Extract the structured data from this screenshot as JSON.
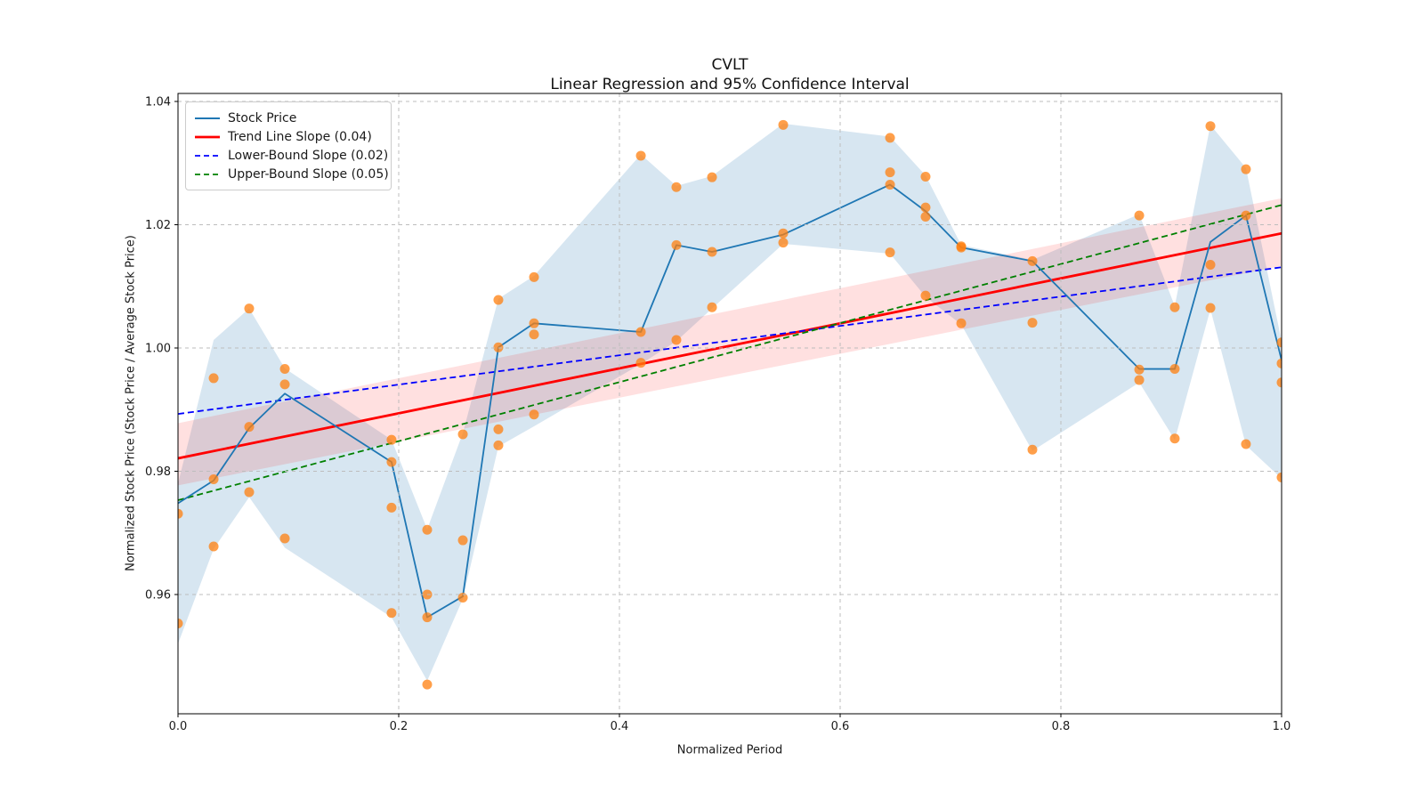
{
  "title": {
    "line1": "CVLT",
    "line2": "Linear Regression and 95% Confidence Interval"
  },
  "axes": {
    "x_label": "Normalized Period",
    "y_label": "Normalized Stock Price (Stock Price / Average Stock Price)",
    "x_tick_labels": [
      "0.0",
      "0.2",
      "0.4",
      "0.6",
      "0.8",
      "1.0"
    ],
    "x_tick_values": [
      0.0,
      0.2,
      0.4,
      0.6,
      0.8,
      1.0
    ],
    "y_tick_labels": [
      "0.96",
      "0.98",
      "1.00",
      "1.02",
      "1.04"
    ],
    "y_tick_values": [
      0.96,
      0.98,
      1.0,
      1.02,
      1.04
    ],
    "grid": "dashed"
  },
  "legend": {
    "items": [
      {
        "label": "Stock Price",
        "color": "#1f77b4",
        "dash": "solid",
        "width": 2
      },
      {
        "label": "Trend Line Slope (0.04)",
        "color": "#ff0000",
        "dash": "solid",
        "width": 2.8
      },
      {
        "label": "Lower-Bound Slope (0.02)",
        "color": "#0000ff",
        "dash": "dashed",
        "width": 1.8
      },
      {
        "label": "Upper-Bound Slope (0.05)",
        "color": "#008000",
        "dash": "dashed",
        "width": 1.8
      }
    ]
  },
  "colors": {
    "stock_line": "#1f77b4",
    "stock_band_fill": "#1f77b4",
    "scatter": "#ff7f0e",
    "trend": "#ff0000",
    "trend_ci_fill": "#ff0000",
    "lower_bound": "#0000ff",
    "upper_bound": "#008000",
    "grid": "#bdbdbd",
    "spine": "#000000",
    "text": "#1a1a1a"
  },
  "chart_data": {
    "type": "line",
    "title": "CVLT",
    "subtitle": "Linear Regression and 95% Confidence Interval",
    "xlabel": "Normalized Period",
    "ylabel": "Normalized Stock Price (Stock Price / Average Stock Price)",
    "xlim": [
      0.0,
      1.0
    ],
    "ylim": [
      0.9407,
      1.0413
    ],
    "legend_position": "upper left",
    "x": [
      0.0,
      0.0323,
      0.0645,
      0.0968,
      0.1935,
      0.2258,
      0.2581,
      0.2903,
      0.3226,
      0.4194,
      0.4516,
      0.4839,
      0.5484,
      0.6452,
      0.6774,
      0.7097,
      0.7742,
      0.871,
      0.9032,
      0.9355,
      0.9677,
      1.0
    ],
    "series": [
      {
        "name": "Stock Price",
        "values": [
          0.9748,
          0.9785,
          0.987,
          0.9926,
          0.9815,
          0.9563,
          0.9597,
          1.0001,
          1.004,
          1.0026,
          1.0167,
          1.0156,
          1.0184,
          1.0265,
          1.0222,
          1.0163,
          1.0141,
          0.9966,
          0.9966,
          1.0172,
          1.0215,
          0.998
        ]
      }
    ],
    "stock_band": {
      "name": "stock price min-max band",
      "upper": [
        0.978,
        1.0013,
        1.0064,
        0.9967,
        0.9851,
        0.9706,
        0.9862,
        1.008,
        1.0117,
        1.0314,
        1.0263,
        1.0279,
        1.0364,
        1.0343,
        1.028,
        1.0167,
        1.0143,
        1.0217,
        1.0068,
        1.0362,
        1.0292,
        1.0011
      ],
      "lower": [
        0.952,
        0.9674,
        0.9758,
        0.9676,
        0.9563,
        0.946,
        0.9593,
        0.984,
        0.9873,
        0.9974,
        1.0011,
        1.0064,
        1.0169,
        1.0153,
        1.0083,
        1.0038,
        0.9833,
        0.9944,
        0.9851,
        1.0063,
        0.9842,
        0.9788
      ]
    },
    "scatter": {
      "name": "stock price samples",
      "points": [
        [
          0.0,
          0.9731
        ],
        [
          0.0,
          0.9553
        ],
        [
          0.0323,
          0.9951
        ],
        [
          0.0323,
          0.9787
        ],
        [
          0.0323,
          0.9678
        ],
        [
          0.0645,
          1.0064
        ],
        [
          0.0645,
          0.9872
        ],
        [
          0.0645,
          0.9766
        ],
        [
          0.0968,
          0.9966
        ],
        [
          0.0968,
          0.9941
        ],
        [
          0.0968,
          0.9691
        ],
        [
          0.1935,
          0.9851
        ],
        [
          0.1935,
          0.9815
        ],
        [
          0.1935,
          0.9741
        ],
        [
          0.1935,
          0.957
        ],
        [
          0.2258,
          0.9705
        ],
        [
          0.2258,
          0.96
        ],
        [
          0.2258,
          0.9563
        ],
        [
          0.2258,
          0.9454
        ],
        [
          0.2581,
          0.986
        ],
        [
          0.2581,
          0.9688
        ],
        [
          0.2581,
          0.9595
        ],
        [
          0.2903,
          1.0078
        ],
        [
          0.2903,
          1.0001
        ],
        [
          0.2903,
          0.9868
        ],
        [
          0.2903,
          0.9842
        ],
        [
          0.3226,
          1.0115
        ],
        [
          0.3226,
          1.004
        ],
        [
          0.3226,
          1.0022
        ],
        [
          0.3226,
          0.9892
        ],
        [
          0.4194,
          1.0312
        ],
        [
          0.4194,
          1.0026
        ],
        [
          0.4194,
          0.9976
        ],
        [
          0.4516,
          1.0261
        ],
        [
          0.4516,
          1.0167
        ],
        [
          0.4516,
          1.0013
        ],
        [
          0.4839,
          1.0277
        ],
        [
          0.4839,
          1.0156
        ],
        [
          0.4839,
          1.0066
        ],
        [
          0.5484,
          1.0362
        ],
        [
          0.5484,
          1.0186
        ],
        [
          0.5484,
          1.0171
        ],
        [
          0.6452,
          1.0341
        ],
        [
          0.6452,
          1.0285
        ],
        [
          0.6452,
          1.0265
        ],
        [
          0.6452,
          1.0155
        ],
        [
          0.6774,
          1.0278
        ],
        [
          0.6774,
          1.0228
        ],
        [
          0.6774,
          1.0213
        ],
        [
          0.6774,
          1.0085
        ],
        [
          0.7097,
          1.0165
        ],
        [
          0.7097,
          1.0163
        ],
        [
          0.7097,
          1.004
        ],
        [
          0.7742,
          1.0141
        ],
        [
          0.7742,
          1.0041
        ],
        [
          0.7742,
          0.9835
        ],
        [
          0.871,
          1.0215
        ],
        [
          0.871,
          0.9965
        ],
        [
          0.871,
          0.9948
        ],
        [
          0.9032,
          1.0066
        ],
        [
          0.9032,
          0.9966
        ],
        [
          0.9032,
          0.9853
        ],
        [
          0.9355,
          1.036
        ],
        [
          0.9355,
          1.0135
        ],
        [
          0.9355,
          1.0065
        ],
        [
          0.9677,
          1.029
        ],
        [
          0.9677,
          1.0215
        ],
        [
          0.9677,
          0.9844
        ],
        [
          1.0,
          1.0009
        ],
        [
          1.0,
          0.9975
        ],
        [
          1.0,
          0.9944
        ],
        [
          1.0,
          0.979
        ]
      ]
    },
    "trend_lines": [
      {
        "name": "Trend Line Slope (0.04)",
        "slope_label": 0.04,
        "color": "#ff0000",
        "dash": "solid",
        "width": 2.8,
        "y_start": 0.9821,
        "y_end": 1.0186
      },
      {
        "name": "Lower-Bound Slope (0.02)",
        "slope_label": 0.02,
        "color": "#0000ff",
        "dash": "dashed",
        "width": 1.8,
        "y_start": 0.9893,
        "y_end": 1.0131
      },
      {
        "name": "Upper-Bound Slope (0.05)",
        "slope_label": 0.05,
        "color": "#008000",
        "dash": "dashed",
        "width": 1.8,
        "y_start": 0.9753,
        "y_end": 1.0232
      }
    ],
    "confidence_band": {
      "name": "95% confidence interval of trend line",
      "start_range": [
        0.9777,
        0.9878
      ],
      "end_range": [
        1.0133,
        1.0243
      ]
    }
  }
}
